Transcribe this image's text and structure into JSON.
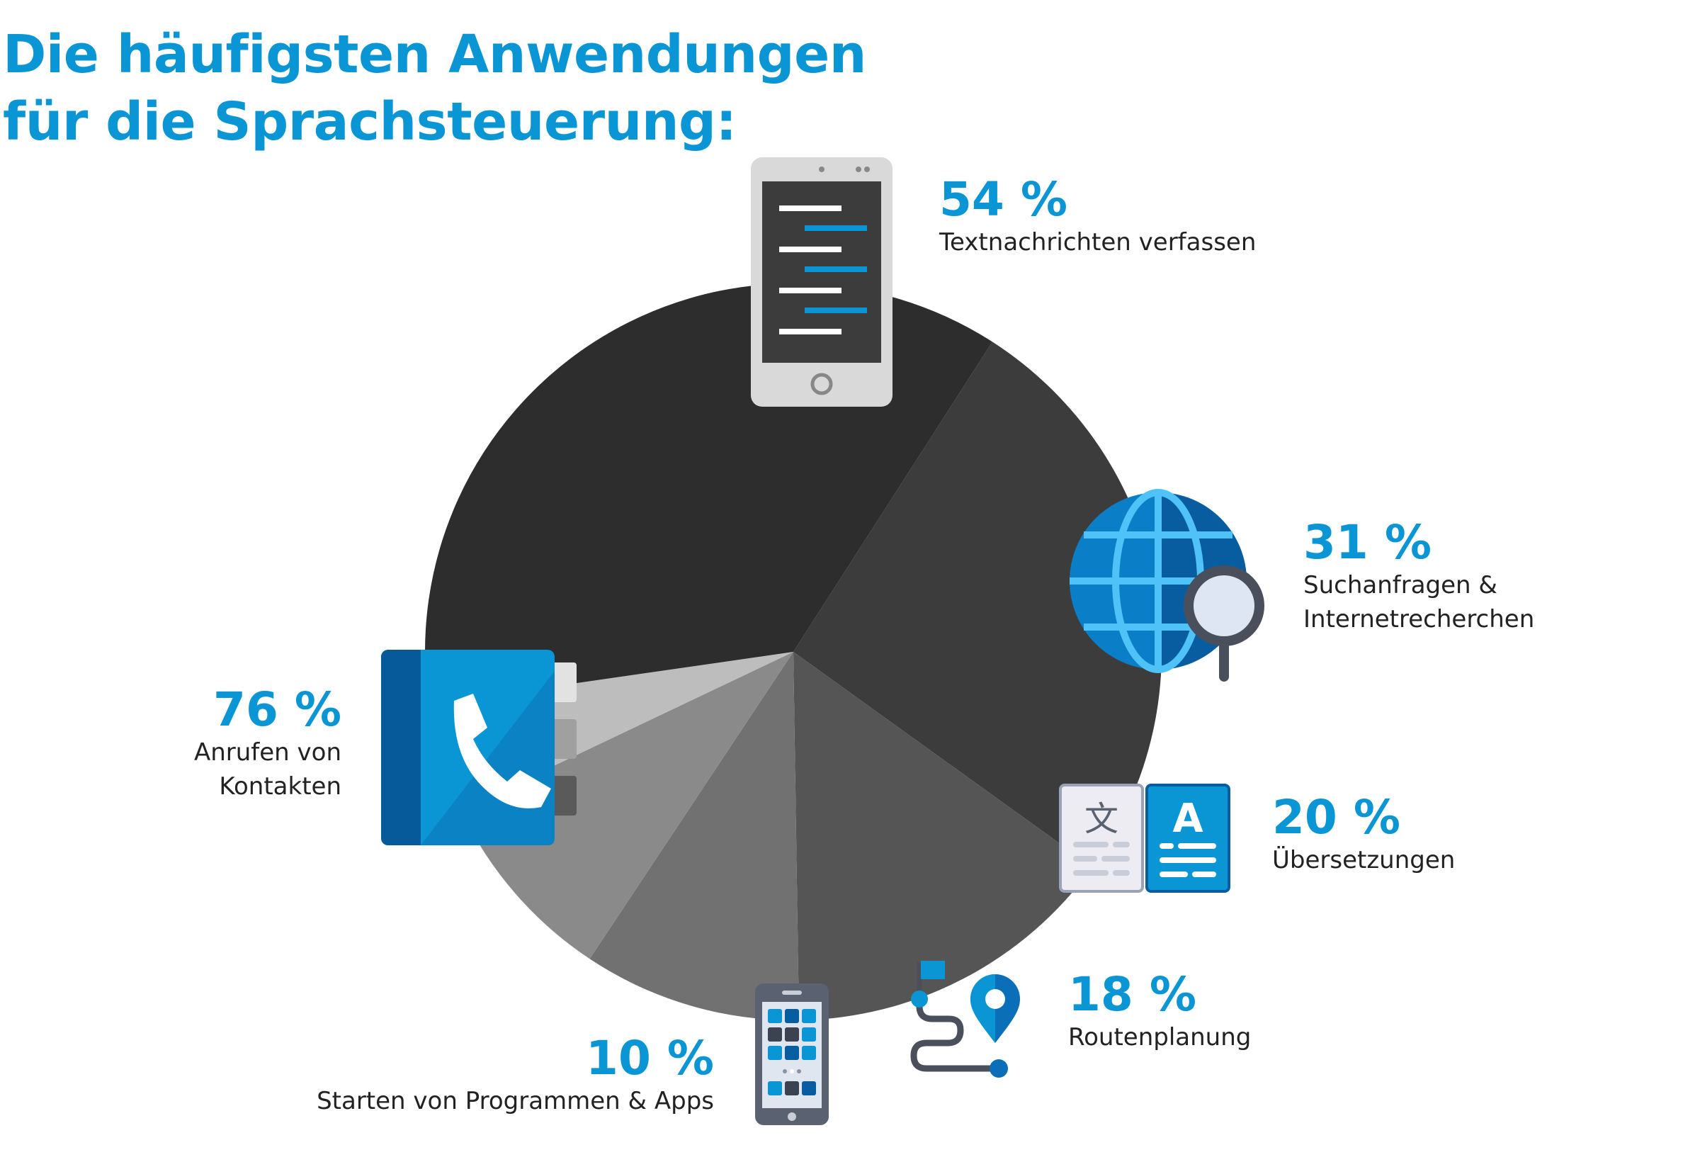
{
  "title": {
    "line1": "Die häufigsten Anwendungen",
    "line2": "für die Sprachsteuerung:"
  },
  "colors": {
    "accent": "#0a95d5"
  },
  "chart_data": {
    "type": "pie",
    "title": "Die häufigsten Anwendungen für die Sprachsteuerung:",
    "slices": [
      {
        "label": "Textnachrichten verfassen",
        "value": 54,
        "value_label": "54 %",
        "color": "#3c3c3c",
        "icon": "smartphone-text-icon"
      },
      {
        "label": "Suchanfragen & Internetrecherchen",
        "label_lines": [
          "Suchanfragen &",
          "Internetrecherchen"
        ],
        "value": 31,
        "value_label": "31 %",
        "color": "#555555",
        "icon": "globe-search-icon"
      },
      {
        "label": "Übersetzungen",
        "value": 20,
        "value_label": "20 %",
        "color": "#717171",
        "icon": "translate-icon"
      },
      {
        "label": "Routenplanung",
        "value": 18,
        "value_label": "18 %",
        "color": "#8a8a8a",
        "icon": "route-icon"
      },
      {
        "label": "Starten von Programmen & Apps",
        "value": 10,
        "value_label": "10 %",
        "color": "#bdbdbd",
        "icon": "smartphone-apps-icon"
      },
      {
        "label": "Anrufen von Kontakten",
        "label_lines": [
          "Anrufen von",
          "Kontakten"
        ],
        "value": 76,
        "value_label": "76 %",
        "color": "#2d2d2d",
        "icon": "phone-book-icon"
      }
    ]
  }
}
